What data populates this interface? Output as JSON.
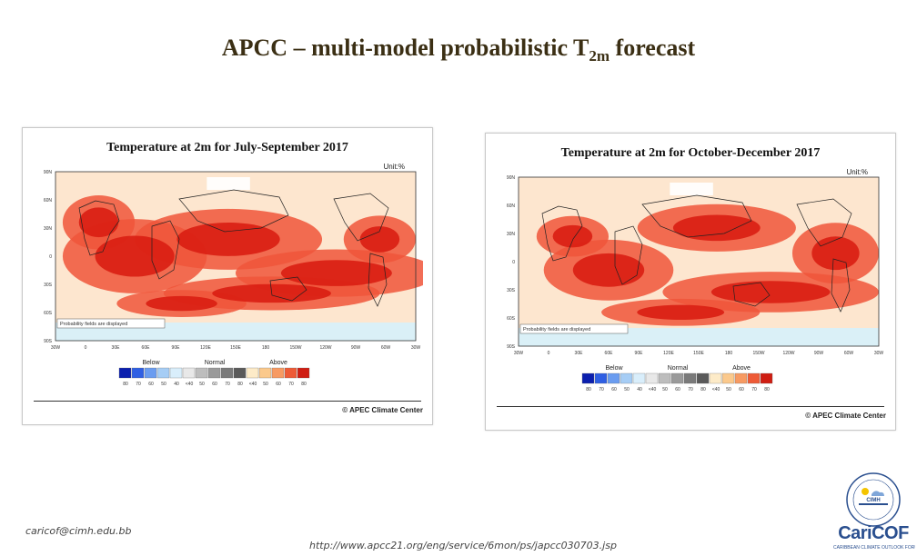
{
  "slide": {
    "title_main": "APCC – multi-model probabilistic T",
    "title_sub": "2m",
    "title_end": " forecast",
    "email": "caricof@cimh.edu.bb",
    "url": "http://www.apcc21.org/eng/service/6mon/ps/japcc030703.jsp"
  },
  "maps": [
    {
      "title": "Temperature at 2m for July-September 2017",
      "unit": "Unit:%",
      "lat_labels": [
        "90N",
        "60N",
        "30N",
        "0",
        "30S",
        "60S",
        "90S"
      ],
      "lon_labels": [
        "30W",
        "0",
        "30E",
        "60E",
        "90E",
        "120E",
        "150E",
        "180",
        "150W",
        "120W",
        "90W",
        "60W",
        "30W"
      ],
      "note": "Probability fields are displayed",
      "copyright": "© APEC Climate Center"
    },
    {
      "title": "Temperature at 2m for October-December 2017",
      "unit": "Unit:%",
      "lat_labels": [
        "90N",
        "60N",
        "30N",
        "0",
        "30S",
        "60S",
        "90S"
      ],
      "lon_labels": [
        "30W",
        "0",
        "30E",
        "60E",
        "90E",
        "120E",
        "150E",
        "180",
        "150W",
        "120W",
        "90W",
        "60W",
        "30W"
      ],
      "note": "Probability fields are displayed",
      "copyright": "© APEC Climate Center"
    }
  ],
  "legend": {
    "groups": [
      "Below",
      "Normal",
      "Above"
    ],
    "ticks": [
      "80",
      "70",
      "60",
      "50",
      "40",
      "<40",
      "50",
      "60",
      "70",
      "80",
      "<40",
      "50",
      "60",
      "70",
      "80"
    ],
    "colors": [
      "#0b1fae",
      "#2f5fe3",
      "#6a9cf0",
      "#a6cdf5",
      "#d9eefb",
      "#e8e8e8",
      "#bdbdbd",
      "#9a9a9a",
      "#7a7a7a",
      "#5a5a5a",
      "#fdebc8",
      "#fbc98c",
      "#f79a62",
      "#ee5a36",
      "#cf1d12"
    ]
  },
  "logo": {
    "org": "CIMH",
    "brand": "CariCOF",
    "tagline": "CARIBBEAN CLIMATE OUTLOOK FORUM"
  }
}
